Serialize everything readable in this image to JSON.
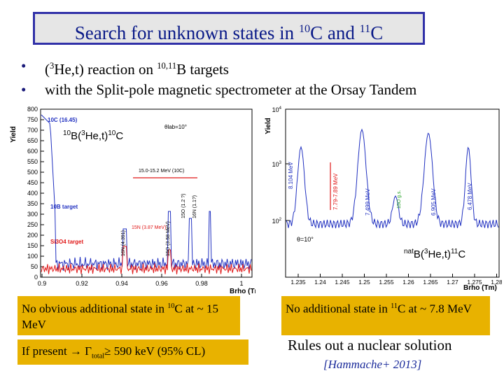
{
  "title": {
    "text_a": "Search for unknown states in ",
    "sup_a": "10",
    "text_b": "C and ",
    "sup_b": "11",
    "text_c": "C"
  },
  "bullets": [
    {
      "marker": "•",
      "pre": " (",
      "sup1": "3",
      "mid": "He,t) reaction on ",
      "sup2": "10,11",
      "post": "B targets"
    },
    {
      "marker": "•",
      "text": "with the Split-pole magnetic spectrometer at the Orsay Tandem"
    }
  ],
  "left_plot": {
    "ylabel": "Yield",
    "xlabel": "Brho (Tm)",
    "reaction": {
      "sup1": "10",
      "a": "B(",
      "sup2": "3",
      "b": "He,t)",
      "sup3": "10",
      "c": "C"
    },
    "yticks": [
      "0",
      "50",
      "100",
      "150",
      "200",
      "250",
      "300",
      "350",
      "400",
      "450",
      "500",
      "550",
      "600",
      "650",
      "700",
      "750",
      "800"
    ],
    "xticks": [
      "0.9",
      "0.92",
      "0.94",
      "0.96",
      "0.98",
      "1"
    ],
    "ann_ground": "10C (16.45)",
    "ann_theta": "θlab=10°",
    "ann_range": "15.0-15.2 MeV (10C)",
    "ann_b_target": "10B target",
    "ann_si": "Si3O4 target",
    "ann_n1": "16N (4.391)",
    "ann_n2": "15N (3.87 MeV)",
    "ann_o": "15O (3.58 MeV)",
    "ann_n3": "16N (1.1?)",
    "ann_o2": "15O (1.2 ?)"
  },
  "right_plot": {
    "ylabel": "Yield",
    "xlabel": "Brho (Tm)",
    "theta": "θ=10°",
    "reaction": {
      "sup1": "nat",
      "a": "B(",
      "sup2": "3",
      "b": "He,t)",
      "sup3": "11",
      "c": "C"
    },
    "yticks": [
      {
        "base": "10",
        "exp": "2"
      },
      {
        "base": "10",
        "exp": "3"
      },
      {
        "base": "10",
        "exp": "4"
      }
    ],
    "xticks": [
      "1.235",
      "1.24",
      "1.245",
      "1.25",
      "1.255",
      "1.26",
      "1.265",
      "1.27",
      "1.275",
      "1.28"
    ],
    "peaks": [
      "8.104 MeV",
      "7.499 MeV",
      "6.905 MeV",
      "6.478 MeV"
    ],
    "range_label": "7.79-7.89 MeV",
    "contam": "15O g.s."
  },
  "box1": {
    "a": "No obvious additional state in ",
    "sup": "10",
    "b": "C at ~ 15 MeV"
  },
  "box2": {
    "a": "If present → Γ",
    "sub": "total",
    "b": "≥ 590 keV (95% CL)"
  },
  "box3": {
    "a": "No additional state in ",
    "sup": "11",
    "b": "C at ~ 7.8 MeV"
  },
  "conclusion": "Rules out a nuclear solution",
  "reference": "[Hammache+ 2013]",
  "colors": {
    "title_border": "#3030a8",
    "title_text": "#0a1a88",
    "box_yellow": "#e8b200",
    "blue_trace": "#2030c0",
    "red_trace": "#e01818",
    "reference": "#1a2a9a"
  }
}
